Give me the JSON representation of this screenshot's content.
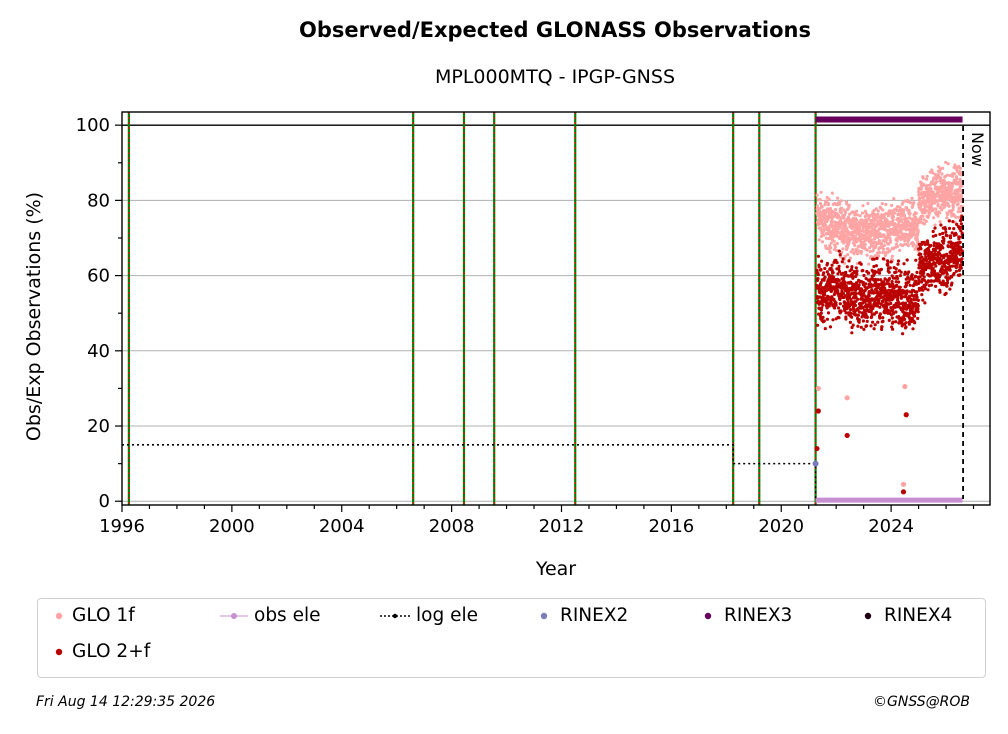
{
  "title": "Observed/Expected GLONASS Observations",
  "subtitle": "MPL000MTQ - IPGP-GNSS",
  "footer": {
    "timestamp": "Fri Aug 14 12:29:35 2026",
    "credit": "©GNSS@ROB"
  },
  "colors": {
    "glo1f": "#ffa4a4",
    "glo2f": "#bb0000",
    "obs_ele": "#c58fd0",
    "log_ele": "#000000",
    "rinex2": "#7b7bbf",
    "rinex3": "#66005c",
    "rinex4": "#1f0015",
    "event_green": "#008000",
    "event_red": "#ff0000"
  },
  "chart_data": {
    "type": "scatter",
    "xlabel": "Year",
    "ylabel": "Obs/Exp Observations (%)",
    "xlim": [
      1996,
      2027.6
    ],
    "ylim": [
      -1,
      103.5
    ],
    "xticks": [
      1996,
      2000,
      2004,
      2008,
      2012,
      2016,
      2020,
      2024
    ],
    "yticks": [
      0,
      20,
      40,
      60,
      80,
      100
    ],
    "grid": "horizontal",
    "reference_line": 100,
    "now_label": "Now",
    "now_x": 2026.62,
    "event_lines": [
      1996.25,
      2006.6,
      2008.45,
      2009.55,
      2012.5,
      2018.25,
      2019.2,
      2021.25
    ],
    "legend_position": "bottom",
    "series": [
      {
        "name": "GLO 1f",
        "marker": "dot",
        "color_key": "glo1f",
        "segments": [
          {
            "x": [
              2021.3,
              2021.6,
              2022.0,
              2022.5,
              2023.0,
              2023.5,
              2024.0,
              2024.5,
              2025.0
            ],
            "y": [
              76,
              74,
              73,
              72,
              71,
              72,
              72,
              73,
              72
            ]
          },
          {
            "x": [
              2025.0,
              2025.4,
              2025.8,
              2026.2,
              2026.6
            ],
            "y": [
              79,
              81,
              82,
              82,
              83
            ]
          }
        ],
        "outliers": [
          {
            "x": 2021.35,
            "y": 30
          },
          {
            "x": 2022.4,
            "y": 27.5
          },
          {
            "x": 2024.5,
            "y": 30.5
          },
          {
            "x": 2024.45,
            "y": 4.5
          }
        ]
      },
      {
        "name": "GLO 2+f",
        "marker": "dot",
        "color_key": "glo2f",
        "segments": [
          {
            "x": [
              2021.3,
              2021.6,
              2022.0,
              2022.5,
              2023.0,
              2023.5,
              2024.0,
              2024.5,
              2025.0
            ],
            "y": [
              55,
              56,
              57,
              55,
              54,
              55,
              55,
              54,
              54
            ]
          },
          {
            "x": [
              2025.0,
              2025.4,
              2025.8,
              2026.2,
              2026.6
            ],
            "y": [
              62,
              63,
              63,
              65,
              67
            ]
          }
        ],
        "outliers": [
          {
            "x": 2021.35,
            "y": 24
          },
          {
            "x": 2021.3,
            "y": 14
          },
          {
            "x": 2022.4,
            "y": 17.5
          },
          {
            "x": 2024.55,
            "y": 23
          },
          {
            "x": 2024.45,
            "y": 2.5
          }
        ]
      },
      {
        "name": "obs ele",
        "marker": "line",
        "color_key": "obs_ele",
        "x": [
          2021.25,
          2026.6
        ],
        "y": [
          0.3,
          0.3
        ]
      },
      {
        "name": "log ele",
        "marker": "dotted-step",
        "color_key": "log_ele",
        "x": [
          1996.0,
          2018.25,
          2018.25,
          2021.25,
          2021.25
        ],
        "y": [
          15,
          15,
          10,
          10,
          0
        ]
      },
      {
        "name": "RINEX2",
        "marker": "dot",
        "color_key": "rinex2",
        "x": [
          2021.25
        ],
        "y": [
          10
        ]
      },
      {
        "name": "RINEX3",
        "marker": "bar",
        "color_key": "rinex3",
        "x": [
          2021.25,
          2026.6
        ],
        "y": [
          101.5,
          101.5
        ]
      },
      {
        "name": "RINEX4",
        "marker": "dot",
        "color_key": "rinex4",
        "x": [],
        "y": []
      }
    ]
  }
}
